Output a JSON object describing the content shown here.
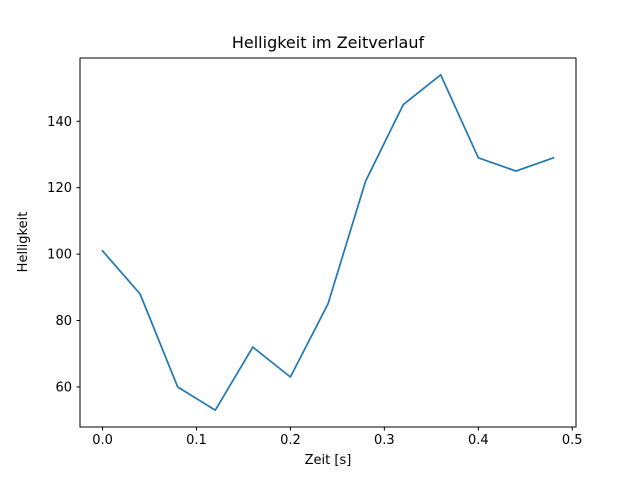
{
  "figure": {
    "background": "#ffffff"
  },
  "chart_data": {
    "type": "line",
    "title": "Helligkeit im Zeitverlauf",
    "xlabel": "Zeit [s]",
    "ylabel": "Helligkeit",
    "x": [
      0.0,
      0.04,
      0.08,
      0.12,
      0.16,
      0.2,
      0.24,
      0.28,
      0.32,
      0.36,
      0.4,
      0.44,
      0.48
    ],
    "y": [
      101,
      88,
      60,
      53,
      72,
      63,
      85,
      122,
      145,
      154,
      129,
      125,
      129
    ],
    "xticks": [
      0.0,
      0.1,
      0.2,
      0.3,
      0.4,
      0.5
    ],
    "xtick_labels": [
      "0.0",
      "0.1",
      "0.2",
      "0.3",
      "0.4",
      "0.5"
    ],
    "yticks": [
      60,
      80,
      100,
      120,
      140
    ],
    "ytick_labels": [
      "60",
      "80",
      "100",
      "120",
      "140"
    ],
    "xlim": [
      -0.024,
      0.504
    ],
    "ylim": [
      47.95,
      159.05
    ],
    "line_color": "#1f77b4",
    "line_width": 1.7,
    "grid": false,
    "legend_position": "none"
  }
}
